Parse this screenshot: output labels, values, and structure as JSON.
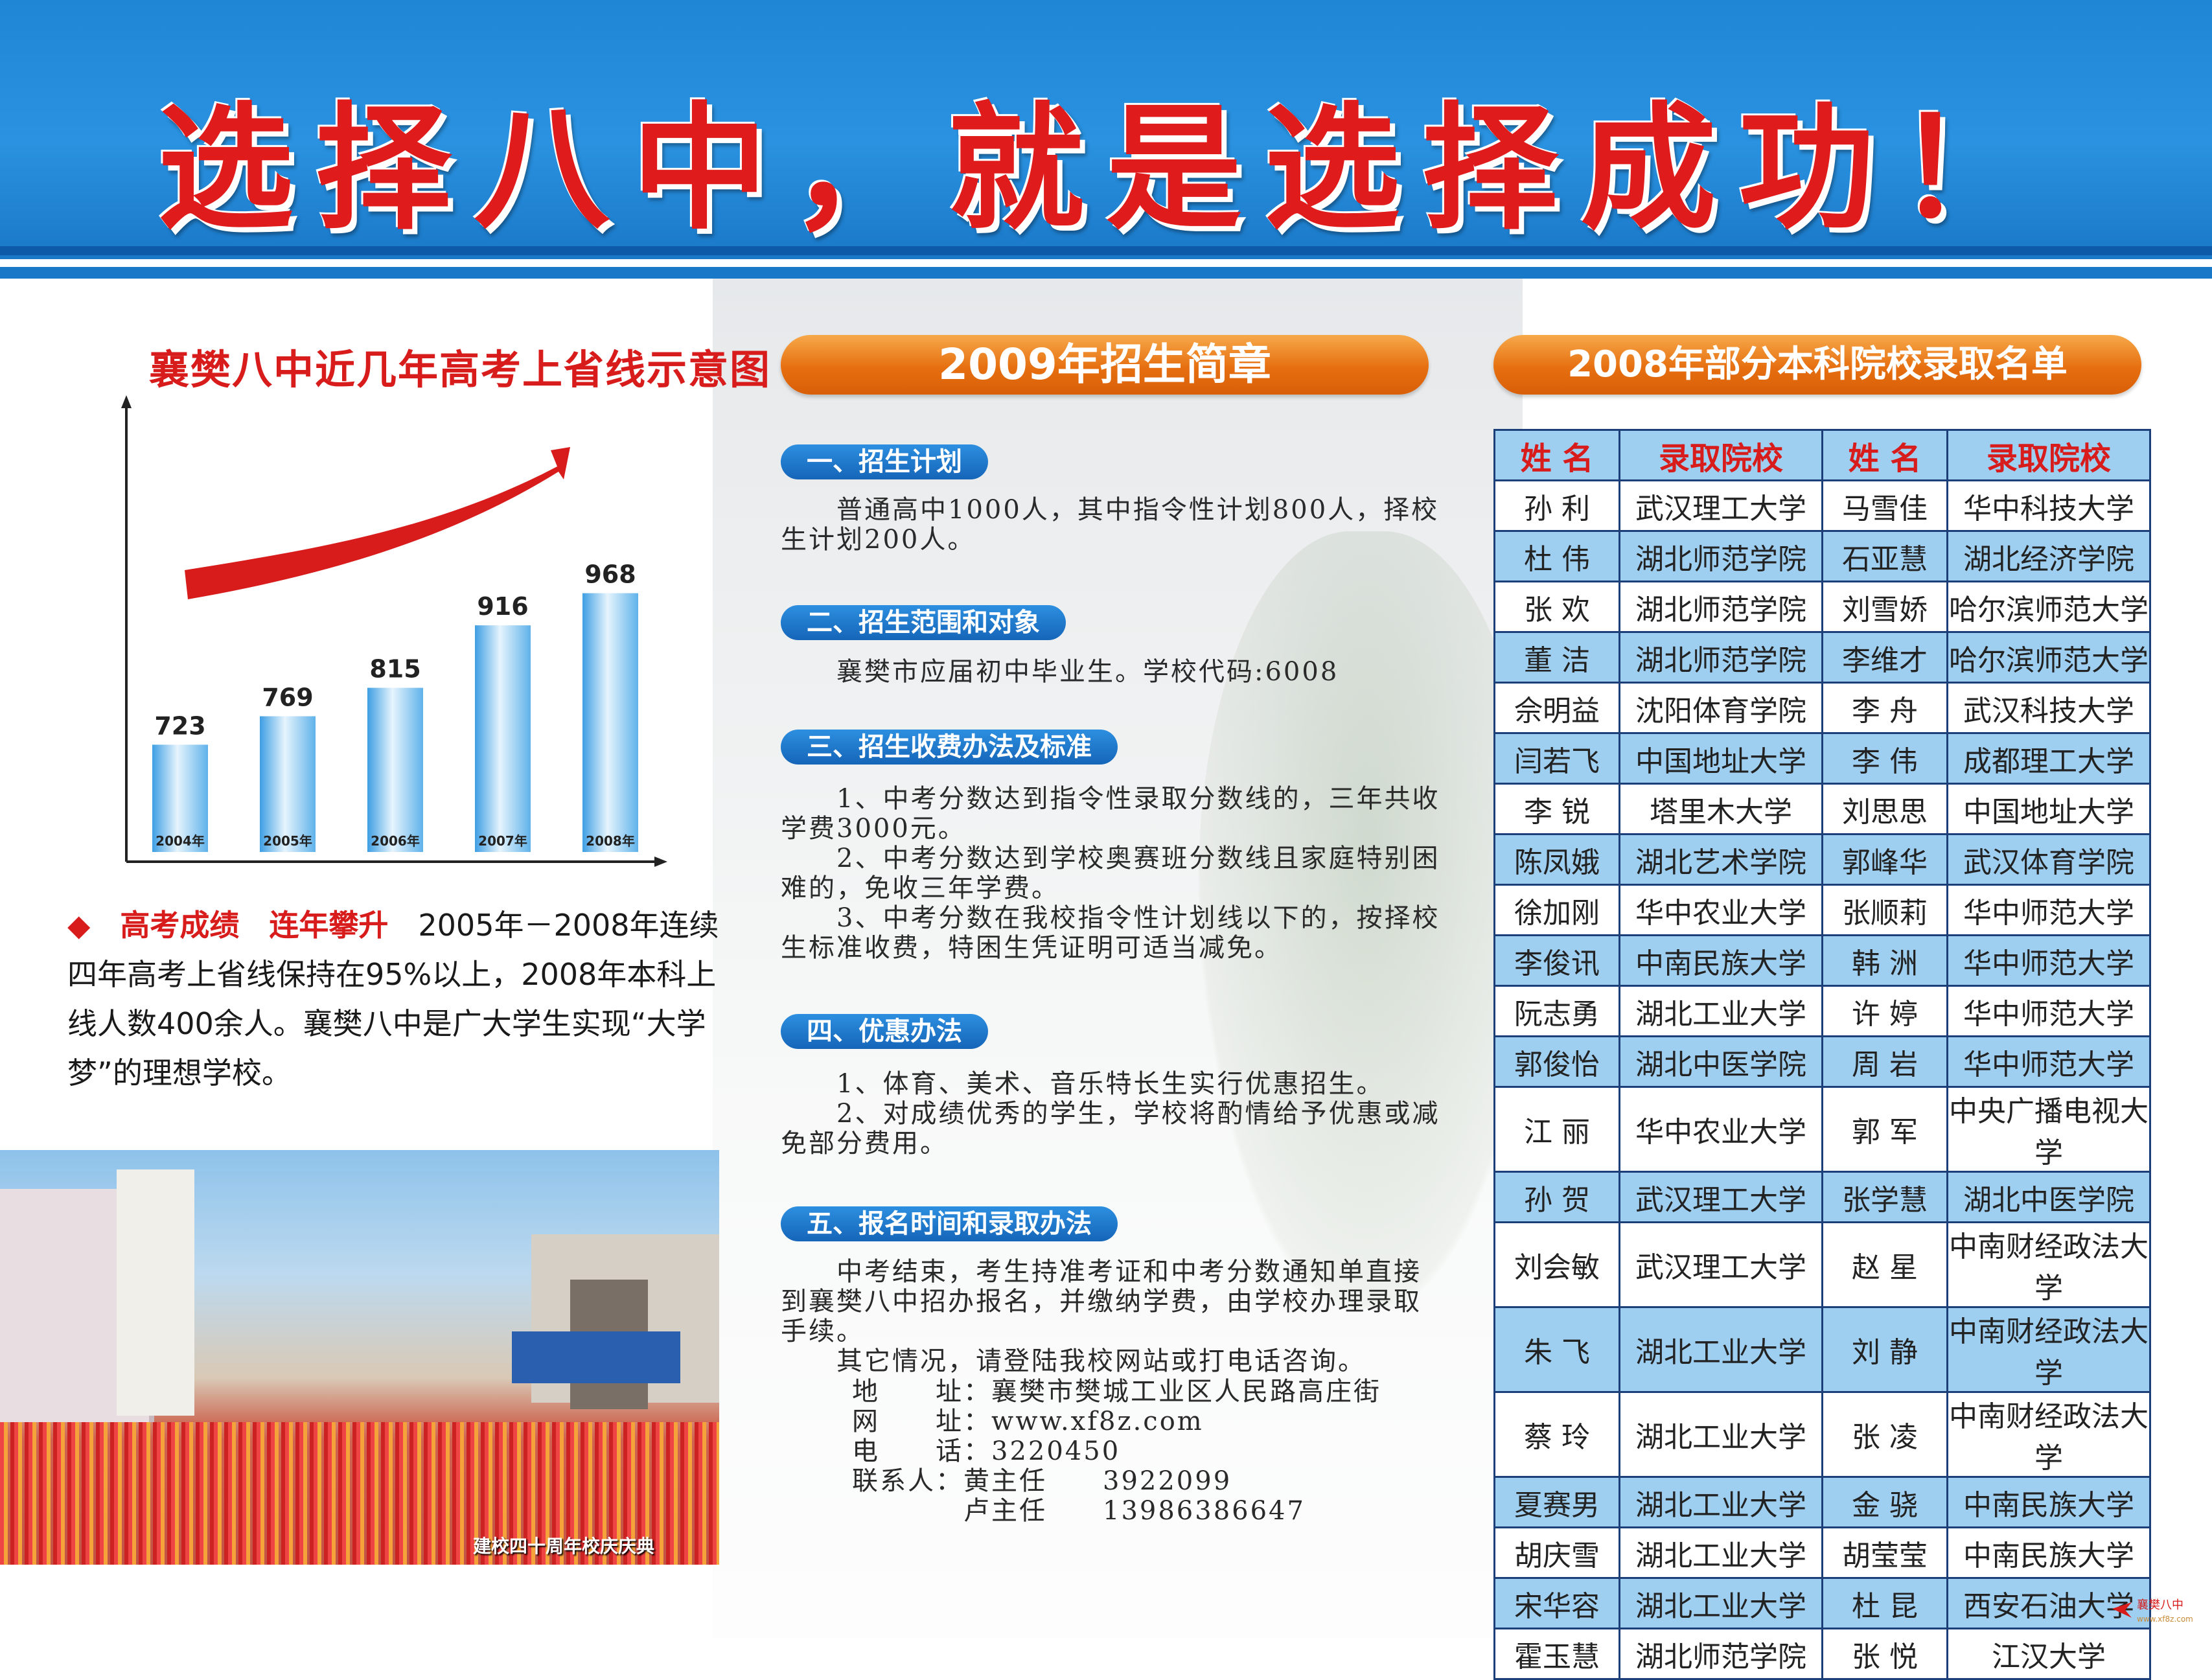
{
  "header": {
    "slogan": "选择八中，就是选择成功！"
  },
  "chart": {
    "title": "襄樊八中近几年高考上省线示意图"
  },
  "chart_data": {
    "type": "bar",
    "title": "襄樊八中近几年高考上省线示意图",
    "categories": [
      "2004年",
      "2005年",
      "2006年",
      "2007年",
      "2008年"
    ],
    "values": [
      723,
      769,
      815,
      916,
      968
    ],
    "value_labels": [
      "723",
      "769",
      "815",
      "916",
      "968"
    ],
    "xlabel": "",
    "ylabel": "",
    "ylim": [
      560,
      1000
    ],
    "colors": {
      "bar": "#5fb2ea",
      "arrow": "#d81c1c"
    },
    "grid": false
  },
  "summary": {
    "highlight": "高考成绩　连年攀升",
    "text": "2005年－2008年连续四年高考上省线保持在95%以上，2008年本科上线人数400余人。襄樊八中是广大学生实现“大学梦”的理想学校。"
  },
  "photo": {
    "caption": "建校四十周年校庆庆典"
  },
  "admission": {
    "banner": "2009年招生简章",
    "sections": [
      {
        "title": "一、招生计划",
        "lines": [
          "　　普通高中1000人，其中指令性计划800人，择校生计划200人。"
        ]
      },
      {
        "title": "二、招生范围和对象",
        "lines": [
          "　　襄樊市应届初中毕业生。学校代码:6008"
        ]
      },
      {
        "title": "三、招生收费办法及标准",
        "lines": [
          "　　1、中考分数达到指令性录取分数线的，三年共收学费3000元。",
          "　　2、中考分数达到学校奥赛班分数线且家庭特别困难的，免收三年学费。",
          "　　3、中考分数在我校指令性计划线以下的，按择校生标准收费，特困生凭证明可适当减免。"
        ]
      },
      {
        "title": "四、优惠办法",
        "lines": [
          "　　1、体育、美术、音乐特长生实行优惠招生。",
          "　　2、对成绩优秀的学生，学校将酌情给予优惠或减免部分费用。"
        ]
      },
      {
        "title": "五、报名时间和录取办法",
        "lines": [
          "　　中考结束，考生持准考证和中考分数通知单直接到襄樊八中招办报名，并缴纳学费，由学校办理录取手续。",
          "　　其它情况，请登陆我校网站或打电话咨询。"
        ]
      }
    ],
    "contact": {
      "address_label": "地　　址：",
      "address": "襄樊市樊城工业区人民路高庄街",
      "web_label": "网　　址：",
      "web": "www.xf8z.com",
      "phone_label": "电　　话：",
      "phone": "3220450",
      "contact_label": "联系人：",
      "person1": "黄主任",
      "phone1": "3922099",
      "person2": "卢主任",
      "phone2": "13986386647"
    }
  },
  "admit_list": {
    "banner": "2008年部分本科院校录取名单",
    "headers": [
      "姓 名",
      "录取院校",
      "姓 名",
      "录取院校"
    ],
    "rows": [
      [
        "孙 利",
        "武汉理工大学",
        "马雪佳",
        "华中科技大学"
      ],
      [
        "杜 伟",
        "湖北师范学院",
        "石亚慧",
        "湖北经济学院"
      ],
      [
        "张 欢",
        "湖北师范学院",
        "刘雪娇",
        "哈尔滨师范大学"
      ],
      [
        "董 洁",
        "湖北师范学院",
        "李维才",
        "哈尔滨师范大学"
      ],
      [
        "佘明益",
        "沈阳体育学院",
        "李 舟",
        "武汉科技大学"
      ],
      [
        "闫若飞",
        "中国地址大学",
        "李 伟",
        "成都理工大学"
      ],
      [
        "李 锐",
        "塔里木大学",
        "刘思思",
        "中国地址大学"
      ],
      [
        "陈凤娥",
        "湖北艺术学院",
        "郭峰华",
        "武汉体育学院"
      ],
      [
        "徐加刚",
        "华中农业大学",
        "张顺莉",
        "华中师范大学"
      ],
      [
        "李俊讯",
        "中南民族大学",
        "韩 洲",
        "华中师范大学"
      ],
      [
        "阮志勇",
        "湖北工业大学",
        "许 婷",
        "华中师范大学"
      ],
      [
        "郭俊怡",
        "湖北中医学院",
        "周 岩",
        "华中师范大学"
      ],
      [
        "江 丽",
        "华中农业大学",
        "郭 军",
        "中央广播电视大学"
      ],
      [
        "孙 贺",
        "武汉理工大学",
        "张学慧",
        "湖北中医学院"
      ],
      [
        "刘会敏",
        "武汉理工大学",
        "赵 星",
        "中南财经政法大学"
      ],
      [
        "朱 飞",
        "湖北工业大学",
        "刘 静",
        "中南财经政法大学"
      ],
      [
        "蔡 玲",
        "湖北工业大学",
        "张 凌",
        "中南财经政法大学"
      ],
      [
        "夏赛男",
        "湖北工业大学",
        "金 骁",
        "中南民族大学"
      ],
      [
        "胡庆雪",
        "湖北工业大学",
        "胡莹莹",
        "中南民族大学"
      ],
      [
        "宋华容",
        "湖北工业大学",
        "杜 昆",
        "西安石油大学"
      ],
      [
        "霍玉慧",
        "湖北师范学院",
        "张 悦",
        "江汉大学"
      ]
    ]
  },
  "watermark": {
    "name": "襄樊八中",
    "url": "www.xf8z.com"
  }
}
